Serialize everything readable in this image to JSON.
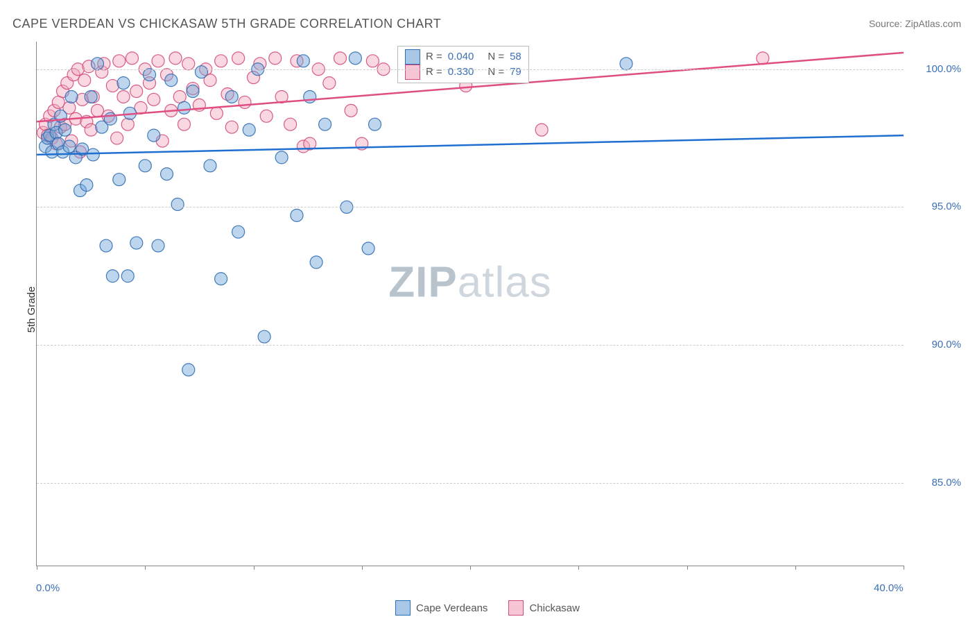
{
  "title": "CAPE VERDEAN VS CHICKASAW 5TH GRADE CORRELATION CHART",
  "source_label": "Source: ZipAtlas.com",
  "y_axis_label": "5th Grade",
  "watermark": {
    "bold": "ZIP",
    "light": "atlas"
  },
  "chart": {
    "type": "scatter",
    "background_color": "#ffffff",
    "grid_color": "#cccccc",
    "axis_color": "#888888",
    "tick_label_color": "#3b6fb6",
    "xlim": [
      0,
      40
    ],
    "ylim": [
      82,
      101
    ],
    "xticks": [
      0,
      5,
      10,
      15,
      20,
      25,
      30,
      35,
      40
    ],
    "xtick_labels": {
      "0": "0.0%",
      "40": "40.0%"
    },
    "yticks": [
      85,
      90,
      95,
      100
    ],
    "ytick_labels": {
      "85": "85.0%",
      "90": "90.0%",
      "95": "95.0%",
      "100": "100.0%"
    },
    "marker_radius": 9,
    "marker_opacity": 0.45,
    "marker_stroke_opacity": 0.9,
    "line_width": 2.5,
    "series": [
      {
        "name": "Cape Verdeans",
        "color": "#6fa3d8",
        "stroke": "#2f6db3",
        "line_color": "#1f6fd1",
        "R": "0.040",
        "N": "58",
        "trend": {
          "x1": 0,
          "y1": 96.9,
          "x2": 40,
          "y2": 97.6
        },
        "points": [
          [
            0.4,
            97.2
          ],
          [
            0.5,
            97.5
          ],
          [
            0.6,
            97.6
          ],
          [
            0.7,
            97.0
          ],
          [
            0.8,
            98.0
          ],
          [
            0.9,
            97.7
          ],
          [
            1.0,
            97.3
          ],
          [
            1.1,
            98.3
          ],
          [
            1.2,
            97.0
          ],
          [
            1.3,
            97.8
          ],
          [
            1.5,
            97.2
          ],
          [
            1.6,
            99.0
          ],
          [
            1.8,
            96.8
          ],
          [
            2.0,
            95.6
          ],
          [
            2.1,
            97.1
          ],
          [
            2.3,
            95.8
          ],
          [
            2.5,
            99.0
          ],
          [
            2.6,
            96.9
          ],
          [
            2.8,
            100.2
          ],
          [
            3.0,
            97.9
          ],
          [
            3.2,
            93.6
          ],
          [
            3.4,
            98.2
          ],
          [
            3.5,
            92.5
          ],
          [
            3.8,
            96.0
          ],
          [
            4.0,
            99.5
          ],
          [
            4.2,
            92.5
          ],
          [
            4.3,
            98.4
          ],
          [
            4.6,
            93.7
          ],
          [
            5.0,
            96.5
          ],
          [
            5.2,
            99.8
          ],
          [
            5.4,
            97.6
          ],
          [
            5.6,
            93.6
          ],
          [
            6.0,
            96.2
          ],
          [
            6.2,
            99.6
          ],
          [
            6.5,
            95.1
          ],
          [
            6.8,
            98.6
          ],
          [
            7.0,
            89.1
          ],
          [
            7.2,
            99.2
          ],
          [
            7.6,
            99.9
          ],
          [
            8.0,
            96.5
          ],
          [
            8.5,
            92.4
          ],
          [
            9.0,
            99.0
          ],
          [
            9.3,
            94.1
          ],
          [
            9.8,
            97.8
          ],
          [
            10.2,
            100.0
          ],
          [
            10.5,
            90.3
          ],
          [
            11.3,
            96.8
          ],
          [
            12.0,
            94.7
          ],
          [
            12.3,
            100.3
          ],
          [
            12.6,
            99.0
          ],
          [
            12.9,
            93.0
          ],
          [
            13.3,
            98.0
          ],
          [
            14.3,
            95.0
          ],
          [
            14.7,
            100.4
          ],
          [
            15.3,
            93.5
          ],
          [
            15.6,
            98.0
          ],
          [
            18.5,
            100.3
          ],
          [
            27.2,
            100.2
          ]
        ]
      },
      {
        "name": "Chickasaw",
        "color": "#f2a9bd",
        "stroke": "#d34b7a",
        "line_color": "#e04d82",
        "R": "0.330",
        "N": "79",
        "trend": {
          "x1": 0,
          "y1": 98.1,
          "x2": 40,
          "y2": 100.6
        },
        "points": [
          [
            0.3,
            97.7
          ],
          [
            0.4,
            98.0
          ],
          [
            0.5,
            97.6
          ],
          [
            0.6,
            98.3
          ],
          [
            0.7,
            97.5
          ],
          [
            0.8,
            98.5
          ],
          [
            0.9,
            97.3
          ],
          [
            1.0,
            98.8
          ],
          [
            1.1,
            97.9
          ],
          [
            1.2,
            99.2
          ],
          [
            1.3,
            98.0
          ],
          [
            1.4,
            99.5
          ],
          [
            1.5,
            98.6
          ],
          [
            1.6,
            97.4
          ],
          [
            1.7,
            99.8
          ],
          [
            1.8,
            98.2
          ],
          [
            1.9,
            100.0
          ],
          [
            2.0,
            97.0
          ],
          [
            2.1,
            98.9
          ],
          [
            2.2,
            99.6
          ],
          [
            2.3,
            98.1
          ],
          [
            2.4,
            100.1
          ],
          [
            2.5,
            97.8
          ],
          [
            2.6,
            99.0
          ],
          [
            2.8,
            98.5
          ],
          [
            3.0,
            99.9
          ],
          [
            3.1,
            100.2
          ],
          [
            3.3,
            98.3
          ],
          [
            3.5,
            99.4
          ],
          [
            3.7,
            97.5
          ],
          [
            3.8,
            100.3
          ],
          [
            4.0,
            99.0
          ],
          [
            4.2,
            98.0
          ],
          [
            4.4,
            100.4
          ],
          [
            4.6,
            99.2
          ],
          [
            4.8,
            98.6
          ],
          [
            5.0,
            100.0
          ],
          [
            5.2,
            99.5
          ],
          [
            5.4,
            98.9
          ],
          [
            5.6,
            100.3
          ],
          [
            5.8,
            97.4
          ],
          [
            6.0,
            99.8
          ],
          [
            6.2,
            98.5
          ],
          [
            6.4,
            100.4
          ],
          [
            6.6,
            99.0
          ],
          [
            6.8,
            98.0
          ],
          [
            7.0,
            100.2
          ],
          [
            7.2,
            99.3
          ],
          [
            7.5,
            98.7
          ],
          [
            7.8,
            100.0
          ],
          [
            8.0,
            99.6
          ],
          [
            8.3,
            98.4
          ],
          [
            8.5,
            100.3
          ],
          [
            8.8,
            99.1
          ],
          [
            9.0,
            97.9
          ],
          [
            9.3,
            100.4
          ],
          [
            9.6,
            98.8
          ],
          [
            10.0,
            99.7
          ],
          [
            10.3,
            100.2
          ],
          [
            10.6,
            98.3
          ],
          [
            11.0,
            100.4
          ],
          [
            11.3,
            99.0
          ],
          [
            11.7,
            98.0
          ],
          [
            12.0,
            100.3
          ],
          [
            12.3,
            97.2
          ],
          [
            12.6,
            97.3
          ],
          [
            13.0,
            100.0
          ],
          [
            13.5,
            99.5
          ],
          [
            14.0,
            100.4
          ],
          [
            14.5,
            98.5
          ],
          [
            15.0,
            97.3
          ],
          [
            15.5,
            100.3
          ],
          [
            16.0,
            100.0
          ],
          [
            17.0,
            100.3
          ],
          [
            18.0,
            100.2
          ],
          [
            19.2,
            100.4
          ],
          [
            19.8,
            99.4
          ],
          [
            23.3,
            97.8
          ],
          [
            33.5,
            100.4
          ]
        ]
      }
    ]
  },
  "legend_top": {
    "rows": [
      {
        "swatch_fill": "#a9c8e8",
        "swatch_border": "#2f6db3",
        "r_label": "R =",
        "r_val": "0.040",
        "n_label": "N =",
        "n_val": "58"
      },
      {
        "swatch_fill": "#f7c6d4",
        "swatch_border": "#d34b7a",
        "r_label": "R =",
        "r_val": "0.330",
        "n_label": "N =",
        "n_val": "79"
      }
    ]
  },
  "legend_bottom": [
    {
      "fill": "#a9c8e8",
      "border": "#2f6db3",
      "label": "Cape Verdeans"
    },
    {
      "fill": "#f7c6d4",
      "border": "#d34b7a",
      "label": "Chickasaw"
    }
  ]
}
